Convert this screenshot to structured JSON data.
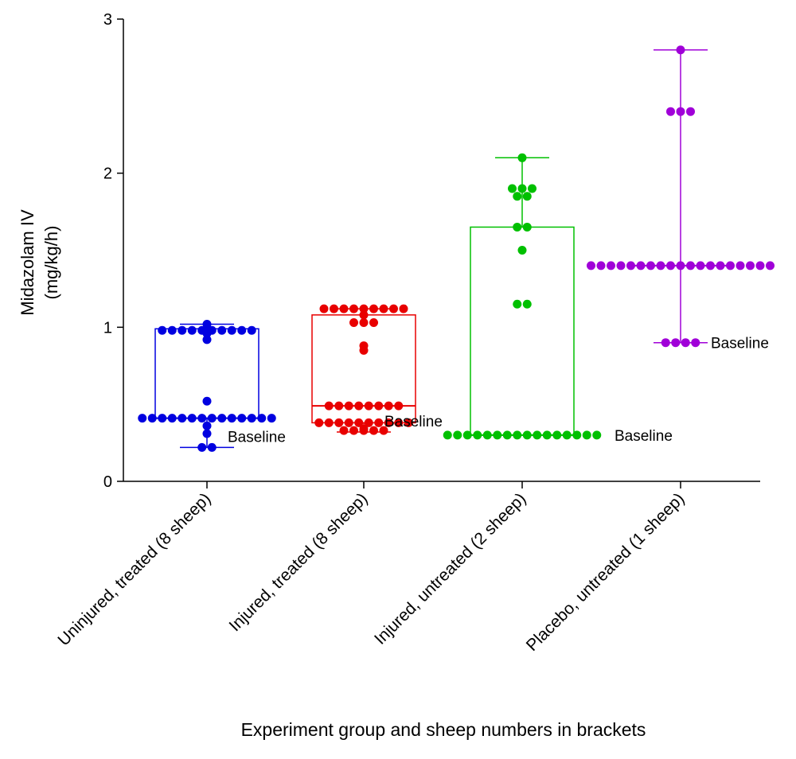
{
  "chart_data": {
    "type": "box",
    "ylabel": [
      "Midazolam IV",
      "(mg/kg/h)"
    ],
    "xlabel": "Experiment group and sheep numbers in brackets",
    "categories": [
      "Uninjured, treated (8 sheep)",
      "Injured, treated (8 sheep)",
      "Injured, untreated (2 sheep)",
      "Placebo, untreated (1 sheep)"
    ],
    "ylim": [
      0,
      3
    ],
    "yticks": [
      0,
      1,
      2,
      3
    ],
    "groups": [
      {
        "color": "#0000e0",
        "min": 0.22,
        "q1": 0.41,
        "median": 0.41,
        "q3": 0.99,
        "max": 1.02,
        "points": [
          1.02,
          0.98,
          0.98,
          0.98,
          0.98,
          0.98,
          0.98,
          0.98,
          0.98,
          0.98,
          0.98,
          0.96,
          0.92,
          0.52,
          0.41,
          0.41,
          0.41,
          0.41,
          0.41,
          0.41,
          0.41,
          0.41,
          0.41,
          0.41,
          0.41,
          0.41,
          0.41,
          0.41,
          0.36,
          0.31,
          0.22,
          0.22
        ]
      },
      {
        "color": "#e80000",
        "min": 0.32,
        "q1": 0.38,
        "median": 0.49,
        "q3": 1.08,
        "max": 1.12,
        "points": [
          1.12,
          1.12,
          1.12,
          1.12,
          1.12,
          1.12,
          1.12,
          1.12,
          1.12,
          1.08,
          1.03,
          1.03,
          1.03,
          0.88,
          0.85,
          0.49,
          0.49,
          0.49,
          0.49,
          0.49,
          0.49,
          0.49,
          0.49,
          0.38,
          0.38,
          0.38,
          0.38,
          0.38,
          0.38,
          0.38,
          0.38,
          0.38,
          0.38,
          0.34,
          0.33,
          0.33,
          0.33,
          0.33,
          0.33
        ]
      },
      {
        "color": "#00c000",
        "min": 0.3,
        "q1": 0.3,
        "median": 0.3,
        "q3": 1.65,
        "max": 2.1,
        "points": [
          2.1,
          1.9,
          1.9,
          1.9,
          1.85,
          1.85,
          1.65,
          1.65,
          1.5,
          1.15,
          1.15,
          0.3,
          0.3,
          0.3,
          0.3,
          0.3,
          0.3,
          0.3,
          0.3,
          0.3,
          0.3,
          0.3,
          0.3,
          0.3,
          0.3,
          0.3,
          0.3
        ]
      },
      {
        "color": "#a000d8",
        "min": 0.9,
        "q1": 1.4,
        "median": 1.4,
        "q3": 1.4,
        "max": 2.8,
        "points": [
          2.8,
          2.4,
          2.4,
          2.4,
          1.4,
          1.4,
          1.4,
          1.4,
          1.4,
          1.4,
          1.4,
          1.4,
          1.4,
          1.4,
          1.4,
          1.4,
          1.4,
          1.4,
          1.4,
          1.4,
          1.4,
          1.4,
          1.4,
          0.9,
          0.9,
          0.9,
          0.9
        ]
      }
    ],
    "annotations": [
      "Baseline",
      "Baseline",
      "Baseline",
      "Baseline"
    ]
  }
}
